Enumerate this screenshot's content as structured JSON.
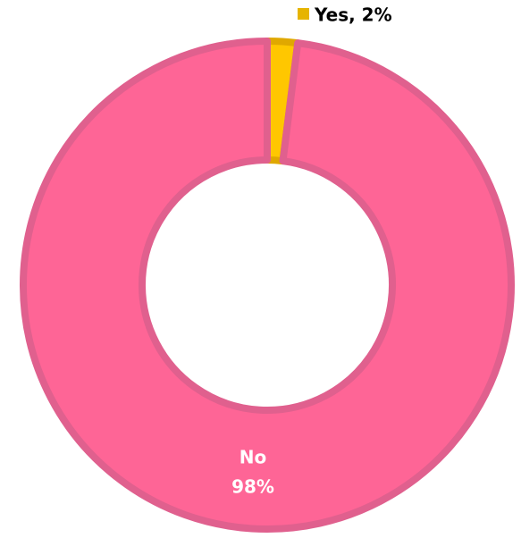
{
  "chart_data": {
    "type": "donut",
    "categories": [
      null,
      "No"
    ],
    "values": [
      2,
      98
    ],
    "value_labels": [
      "Yes, 2%",
      "98%"
    ],
    "colors": [
      "#ffc700",
      "#fe6596"
    ],
    "legend": "top"
  }
}
